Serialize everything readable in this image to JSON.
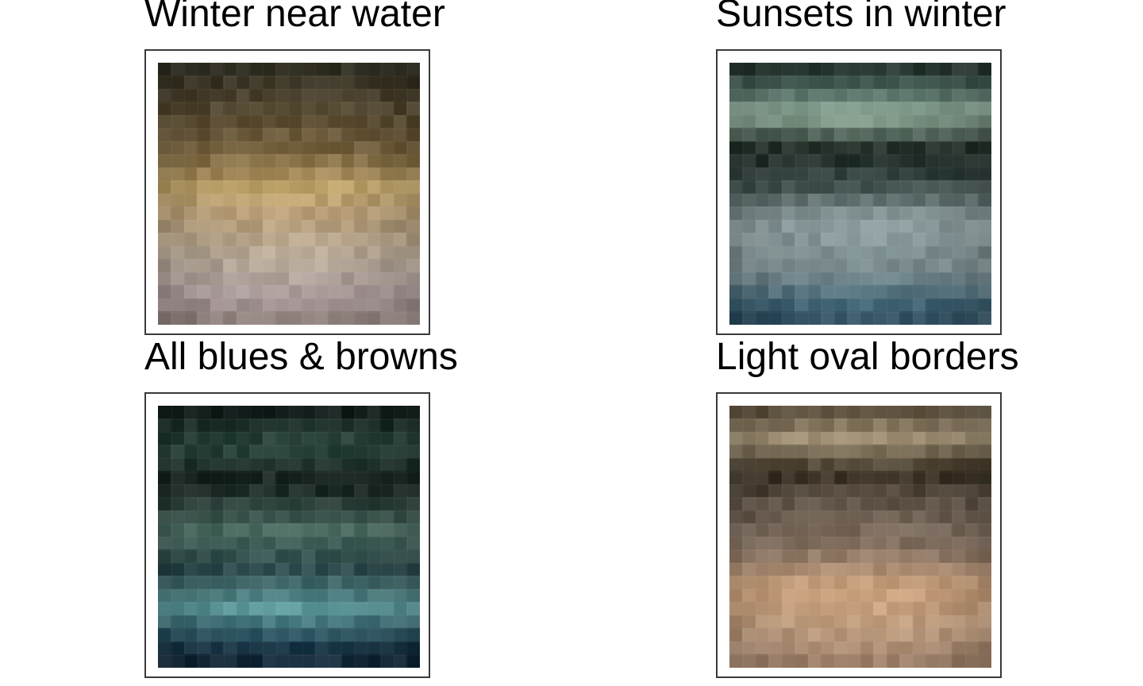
{
  "panels": [
    {
      "title": "Winter near water",
      "palette": [
        [
          0.0,
          "#2e2d22"
        ],
        [
          0.12,
          "#4b4230"
        ],
        [
          0.22,
          "#5e5034"
        ],
        [
          0.34,
          "#7a6440"
        ],
        [
          0.48,
          "#c2a66c"
        ],
        [
          0.6,
          "#b9a07c"
        ],
        [
          0.75,
          "#b9ab9a"
        ],
        [
          0.9,
          "#a99a9b"
        ],
        [
          1.0,
          "#8e7f78"
        ]
      ]
    },
    {
      "title": "Sunsets in winter",
      "palette": [
        [
          0.0,
          "#1f2a24"
        ],
        [
          0.1,
          "#4f6b62"
        ],
        [
          0.2,
          "#95b09e"
        ],
        [
          0.34,
          "#1c2822"
        ],
        [
          0.46,
          "#3d4d4b"
        ],
        [
          0.6,
          "#90a0a2"
        ],
        [
          0.78,
          "#7f9092"
        ],
        [
          0.92,
          "#46697a"
        ],
        [
          1.0,
          "#2d4c5e"
        ]
      ]
    },
    {
      "title": "All blues & browns",
      "palette": [
        [
          0.0,
          "#0f1716"
        ],
        [
          0.15,
          "#2e4a40"
        ],
        [
          0.3,
          "#18231f"
        ],
        [
          0.48,
          "#4b6c62"
        ],
        [
          0.62,
          "#2f4b4c"
        ],
        [
          0.78,
          "#5d9a9c"
        ],
        [
          0.9,
          "#1f4052"
        ],
        [
          1.0,
          "#132433"
        ]
      ]
    },
    {
      "title": "Light oval borders",
      "palette": [
        [
          0.0,
          "#4e4232"
        ],
        [
          0.12,
          "#a7977a"
        ],
        [
          0.26,
          "#3a3124"
        ],
        [
          0.4,
          "#6c5e52"
        ],
        [
          0.55,
          "#8a7665"
        ],
        [
          0.7,
          "#d3a882"
        ],
        [
          0.85,
          "#c09e80"
        ],
        [
          1.0,
          "#9a7d68"
        ]
      ]
    }
  ]
}
